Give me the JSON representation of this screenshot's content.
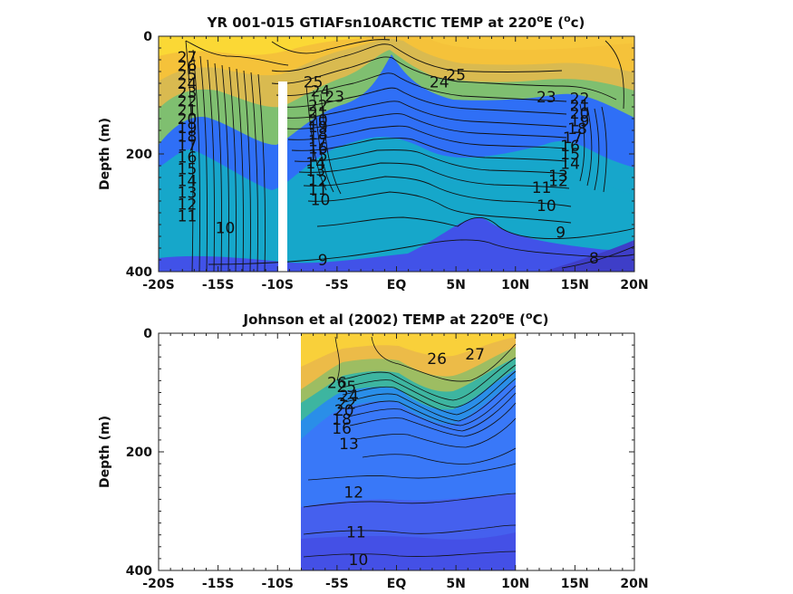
{
  "chart_data": [
    {
      "type": "heatmap",
      "title": "YR 001-015 GTIAFsn10ARCTIC TEMP at 220",
      "title_suffix": "E (",
      "title_unit": "c)",
      "superscript": "o",
      "ylabel": "Depth (m)",
      "xlim": [
        -20,
        20
      ],
      "ylim": [
        400,
        0
      ],
      "xticks": [
        "-20S",
        "-15S",
        "-10S",
        "-5S",
        "EQ",
        "5N",
        "10N",
        "15N",
        "20N"
      ],
      "yticks": [
        "0",
        "200",
        "400"
      ],
      "ytick_values": [
        0,
        200,
        400
      ],
      "data_extent": [
        -20,
        20
      ],
      "missing_column": [
        -10.2,
        -9.8
      ],
      "colormap": [
        "#3e26a8",
        "#4743f0",
        "#3273fe",
        "#1d9ae4",
        "#15b0b4",
        "#57bf82",
        "#a4be5c",
        "#e0b84d",
        "#fbd13b",
        "#f9f614"
      ],
      "contour_labels": [
        {
          "x": -17.6,
          "y": 35,
          "text": "27"
        },
        {
          "x": -17.6,
          "y": 50,
          "text": "26"
        },
        {
          "x": -17.6,
          "y": 65,
          "text": "25"
        },
        {
          "x": -17.6,
          "y": 80,
          "text": "24"
        },
        {
          "x": -17.6,
          "y": 95,
          "text": "23"
        },
        {
          "x": -17.6,
          "y": 110,
          "text": "22"
        },
        {
          "x": -17.6,
          "y": 125,
          "text": "21"
        },
        {
          "x": -17.6,
          "y": 140,
          "text": "20"
        },
        {
          "x": -17.6,
          "y": 155,
          "text": "19"
        },
        {
          "x": -17.6,
          "y": 170,
          "text": "18"
        },
        {
          "x": -17.6,
          "y": 185,
          "text": "17"
        },
        {
          "x": -17.6,
          "y": 205,
          "text": "16"
        },
        {
          "x": -17.6,
          "y": 225,
          "text": "15"
        },
        {
          "x": -17.6,
          "y": 245,
          "text": "14"
        },
        {
          "x": -17.6,
          "y": 265,
          "text": "13"
        },
        {
          "x": -17.6,
          "y": 285,
          "text": "12"
        },
        {
          "x": -17.6,
          "y": 305,
          "text": "11"
        },
        {
          "x": -14.4,
          "y": 325,
          "text": "10"
        },
        {
          "x": -7.0,
          "y": 78,
          "text": "25"
        },
        {
          "x": -6.4,
          "y": 93,
          "text": "24"
        },
        {
          "x": -5.2,
          "y": 102,
          "text": "23"
        },
        {
          "x": -6.6,
          "y": 118,
          "text": "22"
        },
        {
          "x": -6.6,
          "y": 130,
          "text": "21"
        },
        {
          "x": -6.6,
          "y": 142,
          "text": "20"
        },
        {
          "x": -6.6,
          "y": 154,
          "text": "19"
        },
        {
          "x": -6.6,
          "y": 166,
          "text": "18"
        },
        {
          "x": -6.6,
          "y": 178,
          "text": "17"
        },
        {
          "x": -6.6,
          "y": 190,
          "text": "16"
        },
        {
          "x": -6.6,
          "y": 202,
          "text": "15"
        },
        {
          "x": -6.8,
          "y": 215,
          "text": "14"
        },
        {
          "x": -6.8,
          "y": 228,
          "text": "13"
        },
        {
          "x": -6.6,
          "y": 245,
          "text": "12"
        },
        {
          "x": -6.6,
          "y": 260,
          "text": "11"
        },
        {
          "x": -6.4,
          "y": 278,
          "text": "10"
        },
        {
          "x": -6.2,
          "y": 380,
          "text": "9"
        },
        {
          "x": 5.0,
          "y": 65,
          "text": "25"
        },
        {
          "x": 3.6,
          "y": 78,
          "text": "24"
        },
        {
          "x": 12.6,
          "y": 103,
          "text": "23"
        },
        {
          "x": 15.4,
          "y": 105,
          "text": "22"
        },
        {
          "x": 15.4,
          "y": 118,
          "text": "21"
        },
        {
          "x": 15.4,
          "y": 131,
          "text": "20"
        },
        {
          "x": 15.4,
          "y": 144,
          "text": "19"
        },
        {
          "x": 15.2,
          "y": 157,
          "text": "18"
        },
        {
          "x": 14.8,
          "y": 172,
          "text": "17"
        },
        {
          "x": 14.6,
          "y": 186,
          "text": "16"
        },
        {
          "x": 14.6,
          "y": 200,
          "text": "15"
        },
        {
          "x": 14.6,
          "y": 216,
          "text": "14"
        },
        {
          "x": 13.6,
          "y": 237,
          "text": "13"
        },
        {
          "x": 13.6,
          "y": 245,
          "text": "12"
        },
        {
          "x": 12.2,
          "y": 257,
          "text": "11"
        },
        {
          "x": 12.6,
          "y": 288,
          "text": "10"
        },
        {
          "x": 13.8,
          "y": 333,
          "text": "9"
        },
        {
          "x": 16.6,
          "y": 377,
          "text": "8"
        }
      ]
    },
    {
      "type": "heatmap",
      "title": "Johnson et al (2002) TEMP at 220",
      "title_suffix": "E (",
      "title_unit": "C)",
      "superscript": "o",
      "ylabel": "Depth (m)",
      "xlim": [
        -20,
        20
      ],
      "ylim": [
        400,
        0
      ],
      "xticks": [
        "-20S",
        "-15S",
        "-10S",
        "-5S",
        "EQ",
        "5N",
        "10N",
        "15N",
        "20N"
      ],
      "yticks": [
        "0",
        "200",
        "400"
      ],
      "ytick_values": [
        0,
        200,
        400
      ],
      "data_extent": [
        -8,
        10
      ],
      "colormap": [
        "#3e26a8",
        "#4743f0",
        "#3273fe",
        "#1d9ae4",
        "#15b0b4",
        "#57bf82",
        "#a4be5c",
        "#e0b84d",
        "#fbd13b",
        "#f9f614"
      ],
      "contour_labels": [
        {
          "x": 3.4,
          "y": 43,
          "text": "26"
        },
        {
          "x": 6.6,
          "y": 35,
          "text": "27"
        },
        {
          "x": -5.0,
          "y": 83,
          "text": "26"
        },
        {
          "x": -4.2,
          "y": 90,
          "text": "25"
        },
        {
          "x": -4.0,
          "y": 105,
          "text": "24"
        },
        {
          "x": -4.2,
          "y": 118,
          "text": "22"
        },
        {
          "x": -4.4,
          "y": 130,
          "text": "20"
        },
        {
          "x": -4.6,
          "y": 145,
          "text": "18"
        },
        {
          "x": -4.6,
          "y": 160,
          "text": "16"
        },
        {
          "x": -4.0,
          "y": 186,
          "text": "13"
        },
        {
          "x": -3.6,
          "y": 268,
          "text": "12"
        },
        {
          "x": -3.4,
          "y": 335,
          "text": "11"
        },
        {
          "x": -3.2,
          "y": 382,
          "text": "10"
        }
      ]
    }
  ]
}
